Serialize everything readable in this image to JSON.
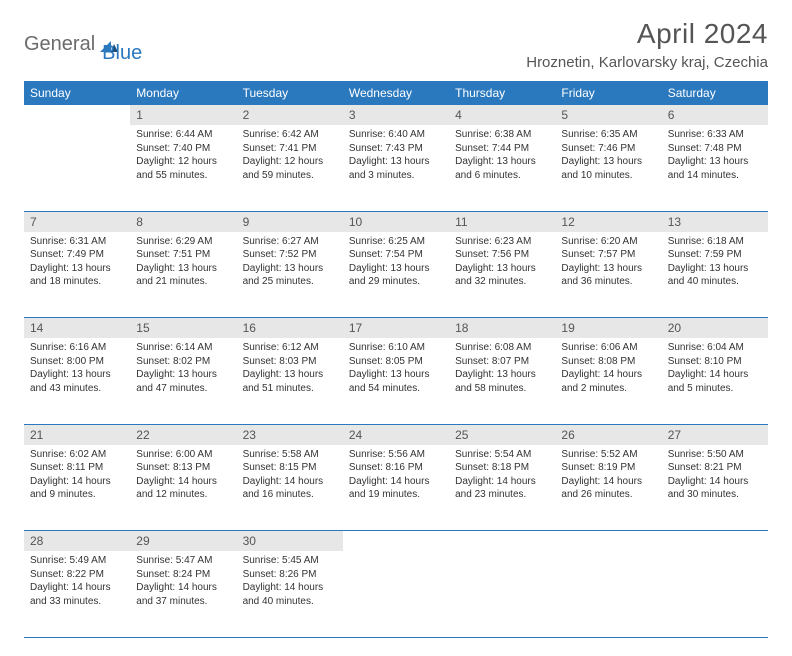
{
  "brand": {
    "part1": "General",
    "part2": "Blue"
  },
  "title": "April 2024",
  "location": "Hroznetin, Karlovarsky kraj, Czechia",
  "colors": {
    "header_bg": "#2a78bd",
    "header_text": "#ffffff",
    "daynum_bg": "#e7e7e7",
    "row_divider": "#2a78bd",
    "title_color": "#555555",
    "body_text": "#333333"
  },
  "weekdays": [
    "Sunday",
    "Monday",
    "Tuesday",
    "Wednesday",
    "Thursday",
    "Friday",
    "Saturday"
  ],
  "weeks": [
    [
      null,
      {
        "n": "1",
        "sr": "Sunrise: 6:44 AM",
        "ss": "Sunset: 7:40 PM",
        "d1": "Daylight: 12 hours",
        "d2": "and 55 minutes."
      },
      {
        "n": "2",
        "sr": "Sunrise: 6:42 AM",
        "ss": "Sunset: 7:41 PM",
        "d1": "Daylight: 12 hours",
        "d2": "and 59 minutes."
      },
      {
        "n": "3",
        "sr": "Sunrise: 6:40 AM",
        "ss": "Sunset: 7:43 PM",
        "d1": "Daylight: 13 hours",
        "d2": "and 3 minutes."
      },
      {
        "n": "4",
        "sr": "Sunrise: 6:38 AM",
        "ss": "Sunset: 7:44 PM",
        "d1": "Daylight: 13 hours",
        "d2": "and 6 minutes."
      },
      {
        "n": "5",
        "sr": "Sunrise: 6:35 AM",
        "ss": "Sunset: 7:46 PM",
        "d1": "Daylight: 13 hours",
        "d2": "and 10 minutes."
      },
      {
        "n": "6",
        "sr": "Sunrise: 6:33 AM",
        "ss": "Sunset: 7:48 PM",
        "d1": "Daylight: 13 hours",
        "d2": "and 14 minutes."
      }
    ],
    [
      {
        "n": "7",
        "sr": "Sunrise: 6:31 AM",
        "ss": "Sunset: 7:49 PM",
        "d1": "Daylight: 13 hours",
        "d2": "and 18 minutes."
      },
      {
        "n": "8",
        "sr": "Sunrise: 6:29 AM",
        "ss": "Sunset: 7:51 PM",
        "d1": "Daylight: 13 hours",
        "d2": "and 21 minutes."
      },
      {
        "n": "9",
        "sr": "Sunrise: 6:27 AM",
        "ss": "Sunset: 7:52 PM",
        "d1": "Daylight: 13 hours",
        "d2": "and 25 minutes."
      },
      {
        "n": "10",
        "sr": "Sunrise: 6:25 AM",
        "ss": "Sunset: 7:54 PM",
        "d1": "Daylight: 13 hours",
        "d2": "and 29 minutes."
      },
      {
        "n": "11",
        "sr": "Sunrise: 6:23 AM",
        "ss": "Sunset: 7:56 PM",
        "d1": "Daylight: 13 hours",
        "d2": "and 32 minutes."
      },
      {
        "n": "12",
        "sr": "Sunrise: 6:20 AM",
        "ss": "Sunset: 7:57 PM",
        "d1": "Daylight: 13 hours",
        "d2": "and 36 minutes."
      },
      {
        "n": "13",
        "sr": "Sunrise: 6:18 AM",
        "ss": "Sunset: 7:59 PM",
        "d1": "Daylight: 13 hours",
        "d2": "and 40 minutes."
      }
    ],
    [
      {
        "n": "14",
        "sr": "Sunrise: 6:16 AM",
        "ss": "Sunset: 8:00 PM",
        "d1": "Daylight: 13 hours",
        "d2": "and 43 minutes."
      },
      {
        "n": "15",
        "sr": "Sunrise: 6:14 AM",
        "ss": "Sunset: 8:02 PM",
        "d1": "Daylight: 13 hours",
        "d2": "and 47 minutes."
      },
      {
        "n": "16",
        "sr": "Sunrise: 6:12 AM",
        "ss": "Sunset: 8:03 PM",
        "d1": "Daylight: 13 hours",
        "d2": "and 51 minutes."
      },
      {
        "n": "17",
        "sr": "Sunrise: 6:10 AM",
        "ss": "Sunset: 8:05 PM",
        "d1": "Daylight: 13 hours",
        "d2": "and 54 minutes."
      },
      {
        "n": "18",
        "sr": "Sunrise: 6:08 AM",
        "ss": "Sunset: 8:07 PM",
        "d1": "Daylight: 13 hours",
        "d2": "and 58 minutes."
      },
      {
        "n": "19",
        "sr": "Sunrise: 6:06 AM",
        "ss": "Sunset: 8:08 PM",
        "d1": "Daylight: 14 hours",
        "d2": "and 2 minutes."
      },
      {
        "n": "20",
        "sr": "Sunrise: 6:04 AM",
        "ss": "Sunset: 8:10 PM",
        "d1": "Daylight: 14 hours",
        "d2": "and 5 minutes."
      }
    ],
    [
      {
        "n": "21",
        "sr": "Sunrise: 6:02 AM",
        "ss": "Sunset: 8:11 PM",
        "d1": "Daylight: 14 hours",
        "d2": "and 9 minutes."
      },
      {
        "n": "22",
        "sr": "Sunrise: 6:00 AM",
        "ss": "Sunset: 8:13 PM",
        "d1": "Daylight: 14 hours",
        "d2": "and 12 minutes."
      },
      {
        "n": "23",
        "sr": "Sunrise: 5:58 AM",
        "ss": "Sunset: 8:15 PM",
        "d1": "Daylight: 14 hours",
        "d2": "and 16 minutes."
      },
      {
        "n": "24",
        "sr": "Sunrise: 5:56 AM",
        "ss": "Sunset: 8:16 PM",
        "d1": "Daylight: 14 hours",
        "d2": "and 19 minutes."
      },
      {
        "n": "25",
        "sr": "Sunrise: 5:54 AM",
        "ss": "Sunset: 8:18 PM",
        "d1": "Daylight: 14 hours",
        "d2": "and 23 minutes."
      },
      {
        "n": "26",
        "sr": "Sunrise: 5:52 AM",
        "ss": "Sunset: 8:19 PM",
        "d1": "Daylight: 14 hours",
        "d2": "and 26 minutes."
      },
      {
        "n": "27",
        "sr": "Sunrise: 5:50 AM",
        "ss": "Sunset: 8:21 PM",
        "d1": "Daylight: 14 hours",
        "d2": "and 30 minutes."
      }
    ],
    [
      {
        "n": "28",
        "sr": "Sunrise: 5:49 AM",
        "ss": "Sunset: 8:22 PM",
        "d1": "Daylight: 14 hours",
        "d2": "and 33 minutes."
      },
      {
        "n": "29",
        "sr": "Sunrise: 5:47 AM",
        "ss": "Sunset: 8:24 PM",
        "d1": "Daylight: 14 hours",
        "d2": "and 37 minutes."
      },
      {
        "n": "30",
        "sr": "Sunrise: 5:45 AM",
        "ss": "Sunset: 8:26 PM",
        "d1": "Daylight: 14 hours",
        "d2": "and 40 minutes."
      },
      null,
      null,
      null,
      null
    ]
  ]
}
